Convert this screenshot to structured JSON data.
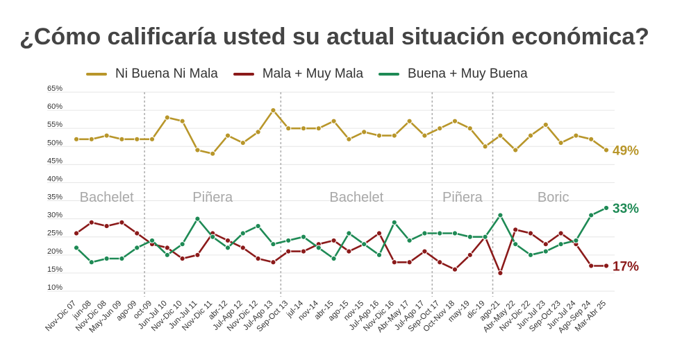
{
  "title": "¿Cómo calificaría usted su actual situación económica?",
  "colors": {
    "ni_buena_ni_mala": "#b8962a",
    "mala": "#8b1a1a",
    "buena": "#1e8a55",
    "grid": "#e6e6e6",
    "era_divider": "#b0b0b0",
    "era_label": "#a8a8a8",
    "axis_text": "#333333"
  },
  "chart_data": {
    "type": "line",
    "ylim": [
      10,
      65
    ],
    "yticks": [
      "10%",
      "15%",
      "20%",
      "25%",
      "30%",
      "35%",
      "40%",
      "45%",
      "50%",
      "55%",
      "60%",
      "65%"
    ],
    "grid": true,
    "legend_position": "top",
    "categories": [
      "Nov-Dic 07",
      "jun-08",
      "Nov-Dic 08",
      "May-Jun 09",
      "ago-09",
      "oct-09",
      "Jun-Jul 10",
      "Nov-Dic 10",
      "Jun-Jul 11",
      "Nov-Dic 11",
      "abr-12",
      "Jul-Ago 12",
      "Nov-Dic 12",
      "Jul-Ago 13",
      "Sep-Oct 13",
      "jul-14",
      "nov-14",
      "abr-15",
      "ago-15",
      "nov-15",
      "Jul-Ago 16",
      "Nov-Dic 16",
      "Abr-May 17",
      "Jul-Ago 17",
      "Sep-Oct 17",
      "Oct-Nov 18",
      "may-19",
      "dic-19",
      "ago-21",
      "Abr-May 22",
      "Nov-Dic 22",
      "Jun-Jul 23",
      "Sep-Oct 23",
      "Jun-Jul 24",
      "Ago-Sep 24",
      "Mar-Abr 25"
    ],
    "series": [
      {
        "name": "Ni Buena Ni Mala",
        "color_key": "ni_buena_ni_mala",
        "end_label": "49%",
        "values": [
          52,
          52,
          53,
          52,
          52,
          52,
          58,
          57,
          49,
          48,
          53,
          51,
          54,
          60,
          55,
          55,
          55,
          57,
          52,
          54,
          53,
          53,
          57,
          53,
          55,
          57,
          55,
          50,
          53,
          49,
          53,
          56,
          51,
          53,
          52,
          49
        ]
      },
      {
        "name": "Mala + Muy Mala",
        "color_key": "mala",
        "end_label": "17%",
        "values": [
          26,
          29,
          28,
          29,
          26,
          23,
          22,
          19,
          20,
          26,
          24,
          22,
          19,
          18,
          21,
          21,
          23,
          24,
          21,
          23,
          26,
          18,
          18,
          21,
          18,
          16,
          20,
          25,
          15,
          27,
          26,
          23,
          26,
          23,
          17,
          17
        ]
      },
      {
        "name": "Buena + Muy Buena",
        "color_key": "buena",
        "end_label": "33%",
        "values": [
          22,
          18,
          19,
          19,
          22,
          24,
          20,
          23,
          30,
          25,
          22,
          26,
          28,
          23,
          24,
          25,
          22,
          19,
          26,
          23,
          20,
          29,
          24,
          26,
          26,
          26,
          25,
          25,
          31,
          23,
          20,
          21,
          23,
          24,
          31,
          33
        ]
      }
    ],
    "era_dividers_after_index": [
      4,
      13,
      23,
      27
    ],
    "eras": [
      {
        "label": "Bachelet",
        "from_index": 0,
        "to_index": 4
      },
      {
        "label": "Piñera",
        "from_index": 5,
        "to_index": 13
      },
      {
        "label": "Bachelet",
        "from_index": 14,
        "to_index": 23
      },
      {
        "label": "Piñera",
        "from_index": 24,
        "to_index": 27
      },
      {
        "label": "Boric",
        "from_index": 28,
        "to_index": 35
      }
    ]
  }
}
